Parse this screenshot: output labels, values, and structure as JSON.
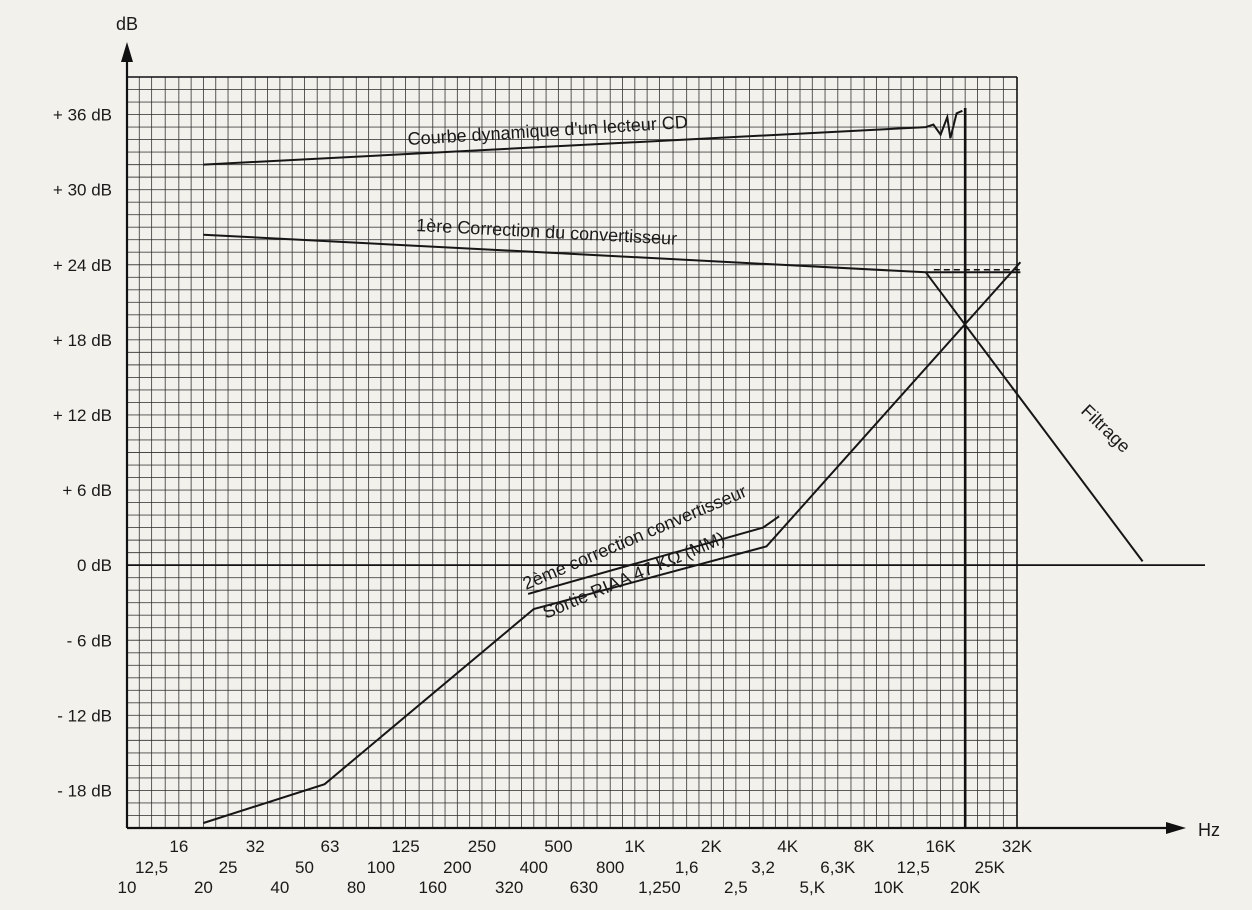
{
  "chart_data": {
    "type": "line",
    "y_unit": "dB",
    "x_unit": "Hz",
    "y_ticks": [
      {
        "value": 36,
        "label": "+ 36 dB"
      },
      {
        "value": 30,
        "label": "+ 30 dB"
      },
      {
        "value": 24,
        "label": "+ 24 dB"
      },
      {
        "value": 18,
        "label": "+ 18 dB"
      },
      {
        "value": 12,
        "label": "+ 12 dB"
      },
      {
        "value": 6,
        "label": "+ 6 dB"
      },
      {
        "value": 0,
        "label": "0 dB"
      },
      {
        "value": -6,
        "label": "- 6 dB"
      },
      {
        "value": -12,
        "label": "- 12 dB"
      },
      {
        "value": -18,
        "label": "- 18 dB"
      }
    ],
    "x_ticks": [
      {
        "hz": 10,
        "label": "10",
        "row": 3
      },
      {
        "hz": 12.5,
        "label": "12,5",
        "row": 2
      },
      {
        "hz": 16,
        "label": "16",
        "row": 1
      },
      {
        "hz": 20,
        "label": "20",
        "row": 3
      },
      {
        "hz": 25,
        "label": "25",
        "row": 2
      },
      {
        "hz": 32,
        "label": "32",
        "row": 1
      },
      {
        "hz": 40,
        "label": "40",
        "row": 3
      },
      {
        "hz": 50,
        "label": "50",
        "row": 2
      },
      {
        "hz": 63,
        "label": "63",
        "row": 1
      },
      {
        "hz": 80,
        "label": "80",
        "row": 3
      },
      {
        "hz": 100,
        "label": "100",
        "row": 2
      },
      {
        "hz": 125,
        "label": "125",
        "row": 1
      },
      {
        "hz": 160,
        "label": "160",
        "row": 3
      },
      {
        "hz": 200,
        "label": "200",
        "row": 2
      },
      {
        "hz": 250,
        "label": "250",
        "row": 1
      },
      {
        "hz": 320,
        "label": "320",
        "row": 3
      },
      {
        "hz": 400,
        "label": "400",
        "row": 2
      },
      {
        "hz": 500,
        "label": "500",
        "row": 1
      },
      {
        "hz": 630,
        "label": "630",
        "row": 3
      },
      {
        "hz": 800,
        "label": "800",
        "row": 2
      },
      {
        "hz": 1000,
        "label": "1K",
        "row": 1
      },
      {
        "hz": 1250,
        "label": "1,250",
        "row": 3
      },
      {
        "hz": 1600,
        "label": "1,6",
        "row": 2
      },
      {
        "hz": 2000,
        "label": "2K",
        "row": 1
      },
      {
        "hz": 2500,
        "label": "2,5",
        "row": 3
      },
      {
        "hz": 3200,
        "label": "3,2",
        "row": 2
      },
      {
        "hz": 4000,
        "label": "4K",
        "row": 1
      },
      {
        "hz": 5000,
        "label": "5,K",
        "row": 3
      },
      {
        "hz": 6300,
        "label": "6,3K",
        "row": 2
      },
      {
        "hz": 8000,
        "label": "8K",
        "row": 1
      },
      {
        "hz": 10000,
        "label": "10K",
        "row": 3
      },
      {
        "hz": 12500,
        "label": "12,5",
        "row": 2
      },
      {
        "hz": 16000,
        "label": "16K",
        "row": 1
      },
      {
        "hz": 20000,
        "label": "20K",
        "row": 3
      },
      {
        "hz": 25000,
        "label": "25K",
        "row": 2
      },
      {
        "hz": 32000,
        "label": "32K",
        "row": 1
      }
    ],
    "x_scale": "log",
    "xlim": [
      10,
      32000
    ],
    "ylim": [
      -21,
      39
    ],
    "grid": true,
    "reference_lines": [
      {
        "axis": "y",
        "value": 0
      },
      {
        "axis": "x",
        "value": 20000
      }
    ],
    "series": [
      {
        "name": "Courbe dynamique d'un lecteur CD",
        "points": [
          [
            20,
            32
          ],
          [
            14000,
            35
          ],
          [
            15000,
            35.2
          ],
          [
            16000,
            34.4
          ],
          [
            17000,
            35.8
          ],
          [
            17500,
            34.1
          ],
          [
            18500,
            36.1
          ],
          [
            19500,
            36.3
          ]
        ]
      },
      {
        "name": "1ère Correction du convertisseur",
        "points": [
          [
            20,
            26.4
          ],
          [
            14000,
            23.4
          ],
          [
            33000,
            23.4
          ]
        ]
      },
      {
        "name": "Filtrage",
        "points": [
          [
            14000,
            23.4
          ],
          [
            100000,
            0.3
          ]
        ]
      },
      {
        "name": "Sortie RIAA 47 KΩ (MM)",
        "points": [
          [
            20,
            -20.6
          ],
          [
            60,
            -17.5
          ],
          [
            400,
            -3.5
          ],
          [
            3300,
            1.5
          ],
          [
            33000,
            24.2
          ]
        ]
      },
      {
        "name": "2ème correction convertisseur",
        "points": [
          [
            380,
            -2.3
          ],
          [
            3200,
            3.0
          ],
          [
            3700,
            3.9
          ]
        ]
      }
    ],
    "annotations": [
      {
        "text": "dB"
      },
      {
        "text": "Hz"
      },
      {
        "text": "Courbe dynamique d'un lecteur CD"
      },
      {
        "text": "1ère Correction du convertisseur"
      },
      {
        "text": "Filtrage"
      },
      {
        "text": "2ème correction convertisseur"
      },
      {
        "text": "Sortie RIAA 47 KΩ (MM)"
      }
    ]
  }
}
